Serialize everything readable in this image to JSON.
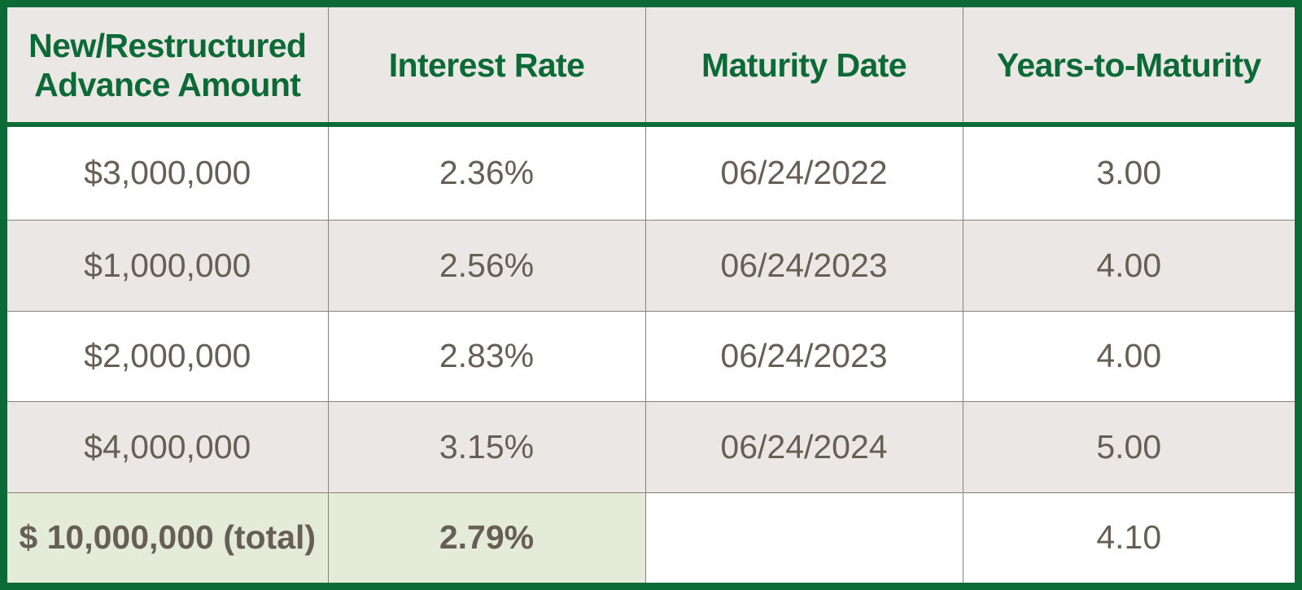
{
  "table": {
    "headers": [
      [
        "New/Restructured",
        "Advance Amount"
      ],
      [
        "Interest Rate"
      ],
      [
        "Maturity Date"
      ],
      [
        "Years-to-Maturity"
      ]
    ],
    "rows": [
      {
        "amount": "$3,000,000",
        "rate": "2.36%",
        "maturity_date": "06/24/2022",
        "years": "3.00"
      },
      {
        "amount": "$1,000,000",
        "rate": "2.56%",
        "maturity_date": "06/24/2023",
        "years": "4.00"
      },
      {
        "amount": "$2,000,000",
        "rate": "2.83%",
        "maturity_date": "06/24/2023",
        "years": "4.00"
      },
      {
        "amount": "$4,000,000",
        "rate": "3.15%",
        "maturity_date": "06/24/2024",
        "years": "5.00"
      }
    ],
    "total": {
      "amount": "$ 10,000,000 (total)",
      "rate": "2.79%",
      "maturity_date": "",
      "years": "4.10"
    }
  },
  "colors": {
    "frame_green": "#0b6a36",
    "header_background": "#ebe7e4",
    "alt_row_background": "#ebe7e4",
    "total_highlight_background": "#e4ecd9",
    "body_text": "#675f55"
  }
}
